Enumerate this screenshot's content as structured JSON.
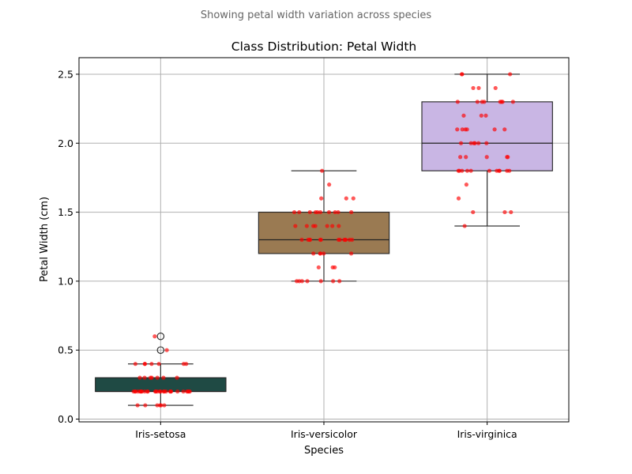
{
  "subtitle": "Showing petal width variation across species",
  "chart_data": {
    "type": "box",
    "title": "Class Distribution: Petal Width",
    "xlabel": "Species",
    "ylabel": "Petal Width (cm)",
    "ylim": [
      -0.02,
      2.62
    ],
    "grid": true,
    "yticks": [
      0.0,
      0.5,
      1.0,
      1.5,
      2.0,
      2.5
    ],
    "ytick_labels": [
      "0.0",
      "0.5",
      "1.0",
      "1.5",
      "2.0",
      "2.5"
    ],
    "categories": [
      "Iris-setosa",
      "Iris-versicolor",
      "Iris-virginica"
    ],
    "boxes": [
      {
        "category": "Iris-setosa",
        "whisker_low": 0.1,
        "q1": 0.2,
        "median": 0.2,
        "q3": 0.3,
        "whisker_high": 0.4,
        "outliers": [
          0.5,
          0.6
        ],
        "color": "#1f4a44"
      },
      {
        "category": "Iris-versicolor",
        "whisker_low": 1.0,
        "q1": 1.2,
        "median": 1.3,
        "q3": 1.5,
        "whisker_high": 1.8,
        "outliers": [],
        "color": "#9a7a52"
      },
      {
        "category": "Iris-virginica",
        "whisker_low": 1.4,
        "q1": 1.8,
        "median": 2.0,
        "q3": 2.3,
        "whisker_high": 2.5,
        "outliers": [],
        "color": "#c9b6e4"
      }
    ],
    "points": [
      {
        "category": "Iris-setosa",
        "values": [
          0.1,
          0.1,
          0.1,
          0.1,
          0.1,
          0.1,
          0.2,
          0.2,
          0.2,
          0.2,
          0.2,
          0.2,
          0.2,
          0.2,
          0.2,
          0.2,
          0.2,
          0.2,
          0.2,
          0.2,
          0.2,
          0.2,
          0.2,
          0.2,
          0.2,
          0.2,
          0.2,
          0.2,
          0.2,
          0.2,
          0.2,
          0.2,
          0.2,
          0.2,
          0.3,
          0.3,
          0.3,
          0.3,
          0.3,
          0.3,
          0.3,
          0.4,
          0.4,
          0.4,
          0.4,
          0.4,
          0.4,
          0.4,
          0.5,
          0.6
        ]
      },
      {
        "category": "Iris-versicolor",
        "values": [
          1.0,
          1.0,
          1.0,
          1.0,
          1.0,
          1.0,
          1.0,
          1.1,
          1.1,
          1.1,
          1.2,
          1.2,
          1.2,
          1.2,
          1.2,
          1.3,
          1.3,
          1.3,
          1.3,
          1.3,
          1.3,
          1.3,
          1.3,
          1.3,
          1.3,
          1.3,
          1.3,
          1.3,
          1.4,
          1.4,
          1.4,
          1.4,
          1.4,
          1.4,
          1.4,
          1.5,
          1.5,
          1.5,
          1.5,
          1.5,
          1.5,
          1.5,
          1.5,
          1.5,
          1.5,
          1.6,
          1.6,
          1.6,
          1.7,
          1.8
        ]
      },
      {
        "category": "Iris-virginica",
        "values": [
          1.4,
          1.5,
          1.5,
          1.5,
          1.6,
          1.7,
          1.8,
          1.8,
          1.8,
          1.8,
          1.8,
          1.8,
          1.8,
          1.8,
          1.8,
          1.8,
          1.8,
          1.9,
          1.9,
          1.9,
          1.9,
          1.9,
          2.0,
          2.0,
          2.0,
          2.0,
          2.0,
          2.0,
          2.1,
          2.1,
          2.1,
          2.1,
          2.1,
          2.1,
          2.2,
          2.2,
          2.2,
          2.3,
          2.3,
          2.3,
          2.3,
          2.3,
          2.3,
          2.3,
          2.3,
          2.4,
          2.4,
          2.4,
          2.5,
          2.5,
          2.5
        ]
      }
    ],
    "point_color": "#ff0000",
    "grid_color": "#b0b0b0",
    "subtitle_color": "#666666"
  }
}
